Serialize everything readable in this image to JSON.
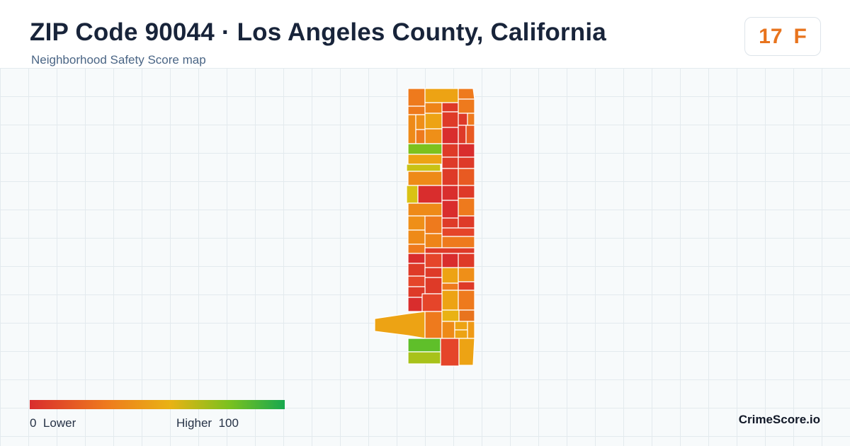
{
  "header": {
    "title": "ZIP Code 90044 · Los Angeles County, California",
    "subtitle": "Neighborhood Safety Score map"
  },
  "score": {
    "value": "17",
    "grade": "F",
    "color": "#e8741e"
  },
  "legend": {
    "low_value": "0",
    "low_label": "Lower",
    "high_label": "Higher",
    "high_value": "100",
    "colors": [
      "#d92d2d",
      "#ee7a1d",
      "#e9b214",
      "#7cc11e",
      "#18a84f"
    ]
  },
  "brand": "CrimeScore.io"
}
